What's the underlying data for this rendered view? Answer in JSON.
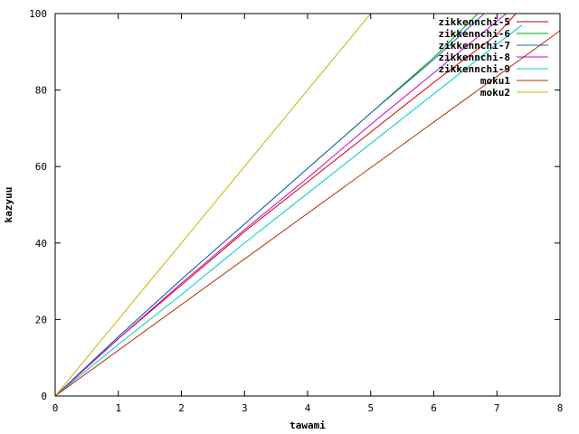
{
  "chart_data": {
    "type": "line",
    "title": "",
    "xlabel": "tawami",
    "ylabel": "kazyuu",
    "xlim": [
      0,
      8
    ],
    "ylim": [
      0,
      100
    ],
    "x_ticks": [
      "0",
      "1",
      "2",
      "3",
      "4",
      "5",
      "6",
      "7",
      "8"
    ],
    "y_ticks": [
      "0",
      "20",
      "40",
      "60",
      "80",
      "100"
    ],
    "grid": false,
    "legend_position": "top-right",
    "series": [
      {
        "name": "zikkennchi-5",
        "color": "#cc0000",
        "x": [
          0,
          1,
          2,
          3,
          4,
          5,
          6,
          7,
          7.3
        ],
        "y": [
          0,
          15,
          29,
          43,
          56,
          69,
          82,
          94.5,
          100
        ]
      },
      {
        "name": "zikkennchi-6",
        "color": "#00a000",
        "x": [
          0,
          1,
          2,
          3,
          4,
          5,
          6,
          6.7
        ],
        "y": [
          0,
          15.5,
          30.5,
          45,
          59.5,
          74,
          88.5,
          100
        ]
      },
      {
        "name": "zikkennchi-7",
        "color": "#2060c0",
        "x": [
          0,
          1,
          2,
          3,
          4,
          5,
          6,
          6.8
        ],
        "y": [
          0,
          15.5,
          30.5,
          45,
          59.5,
          74,
          88,
          100
        ]
      },
      {
        "name": "zikkennchi-8",
        "color": "#cc00cc",
        "x": [
          0,
          1,
          2,
          3,
          4,
          5,
          6,
          7,
          7.15
        ],
        "y": [
          0,
          15,
          29.5,
          43.5,
          57,
          71,
          84.5,
          98,
          100
        ]
      },
      {
        "name": "zikkennchi-9",
        "color": "#00cccc",
        "x": [
          0,
          1,
          2,
          3,
          4,
          5,
          6,
          7,
          7.4
        ],
        "y": [
          0,
          13.5,
          26.5,
          40,
          53,
          66,
          79,
          92,
          97
        ]
      },
      {
        "name": "moku1",
        "color": "#b03000",
        "x": [
          0,
          8
        ],
        "y": [
          0,
          95.5
        ]
      },
      {
        "name": "moku2",
        "color": "#c8b400",
        "x": [
          0,
          5.0
        ],
        "y": [
          0,
          100
        ]
      }
    ]
  }
}
